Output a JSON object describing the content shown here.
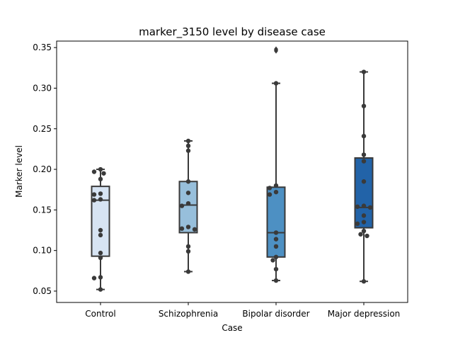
{
  "chart_data": {
    "type": "box",
    "title": "marker_3150 level by disease case",
    "xlabel": "Case",
    "ylabel": "Marker level",
    "ylim": [
      0.036,
      0.358
    ],
    "yticks": [
      0.05,
      0.1,
      0.15,
      0.2,
      0.25,
      0.3,
      0.35
    ],
    "ytick_labels": [
      "0.05",
      "0.10",
      "0.15",
      "0.20",
      "0.25",
      "0.30",
      "0.35"
    ],
    "grid": false,
    "categories": [
      "Control",
      "Schizophrenia",
      "Bipolar disorder",
      "Major depression"
    ],
    "boxes": [
      {
        "category": "Control",
        "color": "#d7e4f3",
        "whisker_low": 0.052,
        "q1": 0.093,
        "median": 0.162,
        "q3": 0.179,
        "whisker_high": 0.2,
        "outliers": []
      },
      {
        "category": "Schizophrenia",
        "color": "#97bfdb",
        "whisker_low": 0.074,
        "q1": 0.122,
        "median": 0.156,
        "q3": 0.185,
        "whisker_high": 0.235,
        "outliers": []
      },
      {
        "category": "Bipolar disorder",
        "color": "#4d90c3",
        "whisker_low": 0.063,
        "q1": 0.092,
        "median": 0.122,
        "q3": 0.178,
        "whisker_high": 0.306,
        "outliers": [
          0.346,
          0.348
        ]
      },
      {
        "category": "Major depression",
        "color": "#2263a8",
        "whisker_low": 0.062,
        "q1": 0.128,
        "median": 0.153,
        "q3": 0.214,
        "whisker_high": 0.32,
        "outliers": []
      }
    ],
    "points": [
      {
        "category": "Control",
        "values": [
          0.2,
          0.197,
          0.195,
          0.188,
          0.17,
          0.169,
          0.163,
          0.162,
          0.125,
          0.119,
          0.097,
          0.091,
          0.067,
          0.066,
          0.052
        ]
      },
      {
        "category": "Schizophrenia",
        "values": [
          0.235,
          0.229,
          0.223,
          0.185,
          0.171,
          0.158,
          0.155,
          0.129,
          0.127,
          0.126,
          0.105,
          0.099,
          0.074
        ]
      },
      {
        "category": "Bipolar disorder",
        "values": [
          0.306,
          0.18,
          0.177,
          0.172,
          0.169,
          0.122,
          0.114,
          0.105,
          0.092,
          0.088,
          0.077,
          0.063
        ]
      },
      {
        "category": "Major depression",
        "values": [
          0.32,
          0.278,
          0.241,
          0.218,
          0.21,
          0.185,
          0.155,
          0.154,
          0.153,
          0.143,
          0.135,
          0.133,
          0.124,
          0.12,
          0.118,
          0.062
        ]
      }
    ],
    "point_color": "#3a3a3a",
    "line_color": "#3a3a3a"
  }
}
